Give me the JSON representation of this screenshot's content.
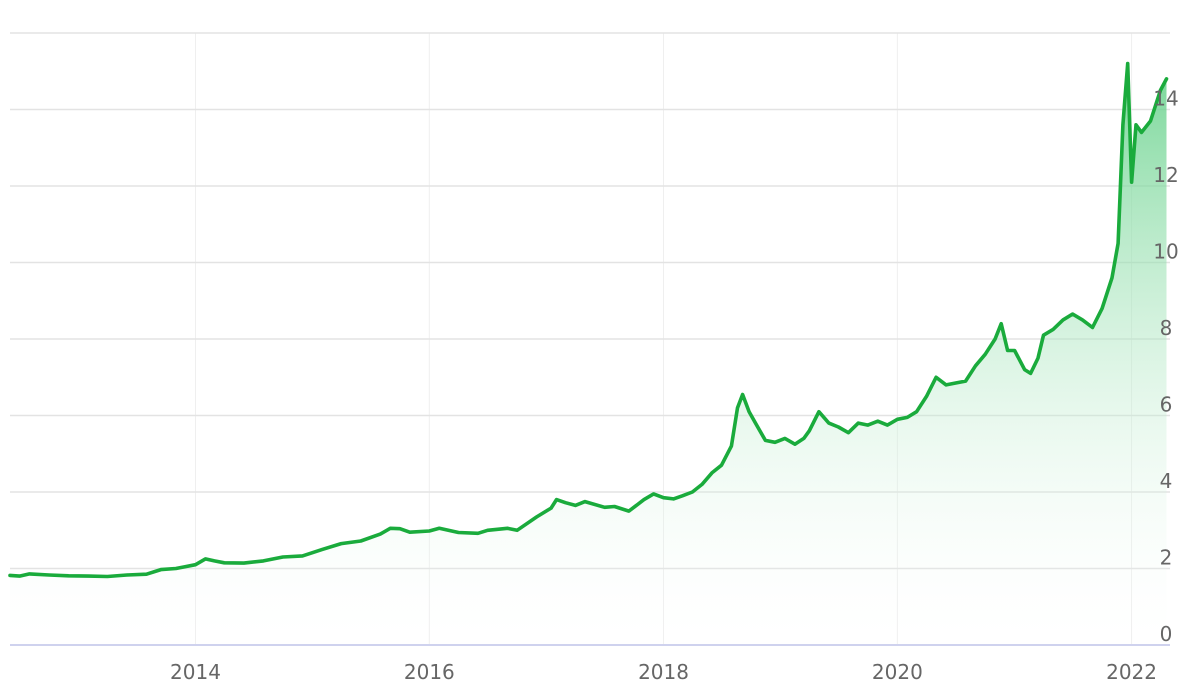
{
  "chart_data": {
    "type": "area",
    "title": "",
    "xlabel": "",
    "ylabel": "",
    "x_axis": {
      "type": "time",
      "ticks": [
        "2014",
        "2016",
        "2018",
        "2020",
        "2022"
      ]
    },
    "y_axis": {
      "position": "right",
      "ylim": [
        0,
        16
      ],
      "ticks": [
        "0",
        "2",
        "4",
        "6",
        "8",
        "10",
        "12",
        "14"
      ]
    },
    "grid": {
      "horizontal": true,
      "vertical": true
    },
    "colors": {
      "line": "#1aab3c",
      "fill_top": "#5fcf85",
      "fill_bottom": "#ffffff",
      "grid": "#e3e3e3",
      "baseline": "#cfd2ee",
      "tick_text": "#666666"
    },
    "series": [
      {
        "points": [
          [
            "2012-06-01",
            1.82
          ],
          [
            "2012-07-01",
            1.8
          ],
          [
            "2012-08-01",
            1.86
          ],
          [
            "2012-10-01",
            1.83
          ],
          [
            "2012-12-01",
            1.81
          ],
          [
            "2013-02-01",
            1.8
          ],
          [
            "2013-04-01",
            1.79
          ],
          [
            "2013-06-01",
            1.83
          ],
          [
            "2013-08-01",
            1.85
          ],
          [
            "2013-09-15",
            1.97
          ],
          [
            "2013-11-01",
            2.0
          ],
          [
            "2013-12-01",
            2.05
          ],
          [
            "2014-01-01",
            2.1
          ],
          [
            "2014-02-01",
            2.25
          ],
          [
            "2014-03-01",
            2.2
          ],
          [
            "2014-04-01",
            2.15
          ],
          [
            "2014-06-01",
            2.14
          ],
          [
            "2014-08-01",
            2.2
          ],
          [
            "2014-10-01",
            2.3
          ],
          [
            "2014-12-01",
            2.33
          ],
          [
            "2015-02-01",
            2.5
          ],
          [
            "2015-04-01",
            2.65
          ],
          [
            "2015-06-01",
            2.72
          ],
          [
            "2015-08-01",
            2.9
          ],
          [
            "2015-09-01",
            3.05
          ],
          [
            "2015-10-01",
            3.04
          ],
          [
            "2015-11-01",
            2.95
          ],
          [
            "2016-01-01",
            2.98
          ],
          [
            "2016-02-01",
            3.05
          ],
          [
            "2016-04-01",
            2.94
          ],
          [
            "2016-06-01",
            2.92
          ],
          [
            "2016-07-01",
            3.0
          ],
          [
            "2016-09-01",
            3.05
          ],
          [
            "2016-10-01",
            3.0
          ],
          [
            "2016-12-01",
            3.35
          ],
          [
            "2017-01-15",
            3.58
          ],
          [
            "2017-02-01",
            3.8
          ],
          [
            "2017-03-01",
            3.72
          ],
          [
            "2017-04-01",
            3.65
          ],
          [
            "2017-05-01",
            3.75
          ],
          [
            "2017-07-01",
            3.6
          ],
          [
            "2017-08-01",
            3.62
          ],
          [
            "2017-09-15",
            3.5
          ],
          [
            "2017-11-01",
            3.8
          ],
          [
            "2017-12-01",
            3.95
          ],
          [
            "2018-01-01",
            3.85
          ],
          [
            "2018-02-01",
            3.82
          ],
          [
            "2018-03-01",
            3.9
          ],
          [
            "2018-04-01",
            4.0
          ],
          [
            "2018-05-01",
            4.2
          ],
          [
            "2018-06-01",
            4.5
          ],
          [
            "2018-07-01",
            4.7
          ],
          [
            "2018-08-01",
            5.2
          ],
          [
            "2018-08-20",
            6.2
          ],
          [
            "2018-09-05",
            6.55
          ],
          [
            "2018-09-25",
            6.1
          ],
          [
            "2018-10-15",
            5.8
          ],
          [
            "2018-11-15",
            5.35
          ],
          [
            "2018-12-15",
            5.3
          ],
          [
            "2019-01-15",
            5.4
          ],
          [
            "2019-02-15",
            5.25
          ],
          [
            "2019-03-15",
            5.4
          ],
          [
            "2019-04-01",
            5.6
          ],
          [
            "2019-05-01",
            6.1
          ],
          [
            "2019-06-01",
            5.8
          ],
          [
            "2019-07-01",
            5.7
          ],
          [
            "2019-08-01",
            5.55
          ],
          [
            "2019-09-01",
            5.8
          ],
          [
            "2019-10-01",
            5.75
          ],
          [
            "2019-11-01",
            5.85
          ],
          [
            "2019-12-01",
            5.75
          ],
          [
            "2020-01-01",
            5.9
          ],
          [
            "2020-02-01",
            5.95
          ],
          [
            "2020-03-01",
            6.1
          ],
          [
            "2020-04-01",
            6.5
          ],
          [
            "2020-05-01",
            7.0
          ],
          [
            "2020-06-01",
            6.8
          ],
          [
            "2020-07-01",
            6.85
          ],
          [
            "2020-08-01",
            6.9
          ],
          [
            "2020-09-01",
            7.3
          ],
          [
            "2020-10-01",
            7.6
          ],
          [
            "2020-11-01",
            8.0
          ],
          [
            "2020-11-20",
            8.4
          ],
          [
            "2020-12-10",
            7.7
          ],
          [
            "2021-01-01",
            7.7
          ],
          [
            "2021-02-01",
            7.2
          ],
          [
            "2021-02-20",
            7.1
          ],
          [
            "2021-03-15",
            7.5
          ],
          [
            "2021-04-01",
            8.1
          ],
          [
            "2021-05-01",
            8.25
          ],
          [
            "2021-06-01",
            8.5
          ],
          [
            "2021-07-01",
            8.65
          ],
          [
            "2021-08-01",
            8.5
          ],
          [
            "2021-09-01",
            8.3
          ],
          [
            "2021-10-01",
            8.8
          ],
          [
            "2021-11-01",
            9.6
          ],
          [
            "2021-11-20",
            10.5
          ],
          [
            "2021-12-05",
            13.6
          ],
          [
            "2021-12-20",
            15.2
          ],
          [
            "2022-01-01",
            12.1
          ],
          [
            "2022-01-15",
            13.6
          ],
          [
            "2022-02-01",
            13.4
          ],
          [
            "2022-03-01",
            13.7
          ],
          [
            "2022-04-01",
            14.5
          ],
          [
            "2022-04-20",
            14.8
          ]
        ]
      }
    ]
  }
}
